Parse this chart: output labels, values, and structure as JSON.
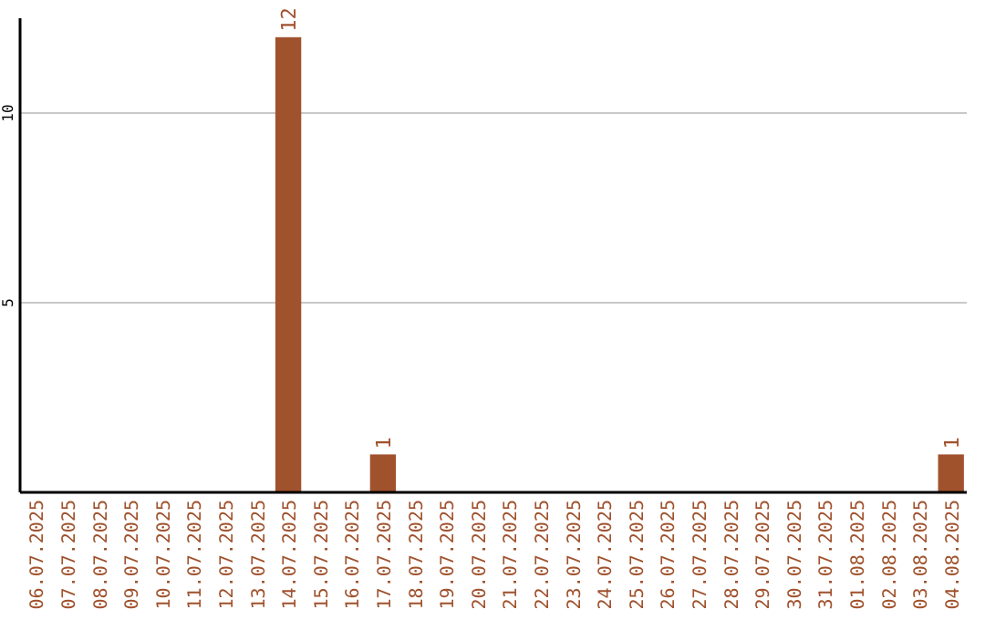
{
  "chart_data": {
    "type": "bar",
    "categories": [
      "06.07.2025",
      "07.07.2025",
      "08.07.2025",
      "09.07.2025",
      "10.07.2025",
      "11.07.2025",
      "12.07.2025",
      "13.07.2025",
      "14.07.2025",
      "15.07.2025",
      "16.07.2025",
      "17.07.2025",
      "18.07.2025",
      "19.07.2025",
      "20.07.2025",
      "21.07.2025",
      "22.07.2025",
      "23.07.2025",
      "24.07.2025",
      "25.07.2025",
      "26.07.2025",
      "27.07.2025",
      "28.07.2025",
      "29.07.2025",
      "30.07.2025",
      "31.07.2025",
      "01.08.2025",
      "02.08.2025",
      "03.08.2025",
      "04.08.2025"
    ],
    "values": [
      0,
      0,
      0,
      0,
      0,
      0,
      0,
      0,
      12,
      0,
      0,
      1,
      0,
      0,
      0,
      0,
      0,
      0,
      0,
      0,
      0,
      0,
      0,
      0,
      0,
      0,
      0,
      0,
      0,
      1
    ],
    "value_labels": [
      null,
      null,
      null,
      null,
      null,
      null,
      null,
      null,
      "12",
      null,
      null,
      "1",
      null,
      null,
      null,
      null,
      null,
      null,
      null,
      null,
      null,
      null,
      null,
      null,
      null,
      null,
      null,
      null,
      null,
      "1"
    ],
    "color": "#a0522d",
    "ylim": [
      0,
      12.5
    ],
    "yticks": [
      5,
      10
    ],
    "grid": "y"
  }
}
